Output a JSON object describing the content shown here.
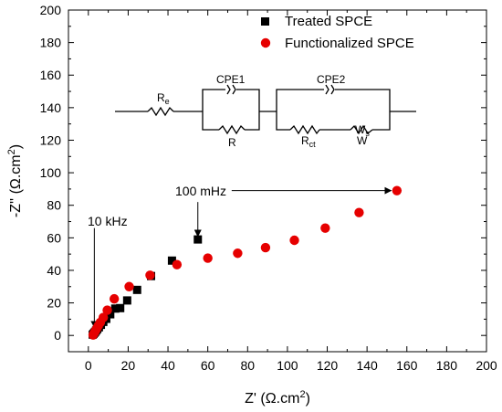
{
  "chart_data": {
    "type": "scatter",
    "x_axis": {
      "label": "Z'",
      "unit": "(Ω.cm",
      "unit_sup": "2",
      "unit_close": ")",
      "lim": [
        -10,
        200
      ],
      "ticks": [
        0,
        20,
        40,
        60,
        80,
        100,
        120,
        140,
        160,
        180,
        200
      ]
    },
    "y_axis": {
      "label": "-Z''",
      "unit": "(Ω.cm",
      "unit_sup": "2",
      "unit_close": ")",
      "lim": [
        -10,
        200
      ],
      "ticks": [
        0,
        20,
        40,
        60,
        80,
        100,
        120,
        140,
        160,
        180,
        200
      ]
    },
    "legend_position": "top-right",
    "series": [
      {
        "name": "Treated SPCE",
        "marker": "square",
        "color": "#000000",
        "x": [
          2.2,
          2.6,
          3.0,
          3.4,
          3.9,
          4.5,
          5.3,
          6.3,
          7.5,
          9.0,
          11.0,
          13.5,
          16.0,
          19.5,
          24.5,
          31.5,
          42.0,
          55.0
        ],
        "y": [
          0.5,
          1.0,
          1.6,
          2.2,
          3.0,
          3.9,
          5.0,
          6.5,
          8.3,
          10.2,
          13.0,
          16.5,
          16.8,
          21.5,
          28.0,
          36.5,
          46.0,
          59.0
        ]
      },
      {
        "name": "Functionalized SPCE",
        "marker": "circle",
        "color": "#e60000",
        "x": [
          2.4,
          2.8,
          3.2,
          3.7,
          4.3,
          5.0,
          6.0,
          7.5,
          9.5,
          13.0,
          20.5,
          31.0,
          44.5,
          60.0,
          75.0,
          89.0,
          103.5,
          119.0,
          136.0,
          155.0
        ],
        "y": [
          0.3,
          1.2,
          2.1,
          3.2,
          4.5,
          6.0,
          8.0,
          11.0,
          15.5,
          22.5,
          30.0,
          37.0,
          43.5,
          47.5,
          50.5,
          54.0,
          58.5,
          66.0,
          75.5,
          89.0
        ]
      }
    ],
    "annotations": [
      {
        "text": "10 kHz",
        "at": [
          3,
          5
        ],
        "from": [
          3,
          66
        ]
      },
      {
        "text": "100 mHz",
        "at": [
          55,
          61
        ],
        "from": [
          55,
          82
        ]
      },
      {
        "text": "",
        "at": [
          152,
          89
        ],
        "from": [
          72,
          89
        ]
      }
    ],
    "circuit": {
      "re_label": "R",
      "re_sub": "e",
      "cpe1_label": "CPE1",
      "r_label": "R",
      "cpe2_label": "CPE2",
      "rct_label": "R",
      "rct_sub": "ct",
      "w_label": "W",
      "ws_label": "W",
      "ws_sub": "s"
    }
  }
}
